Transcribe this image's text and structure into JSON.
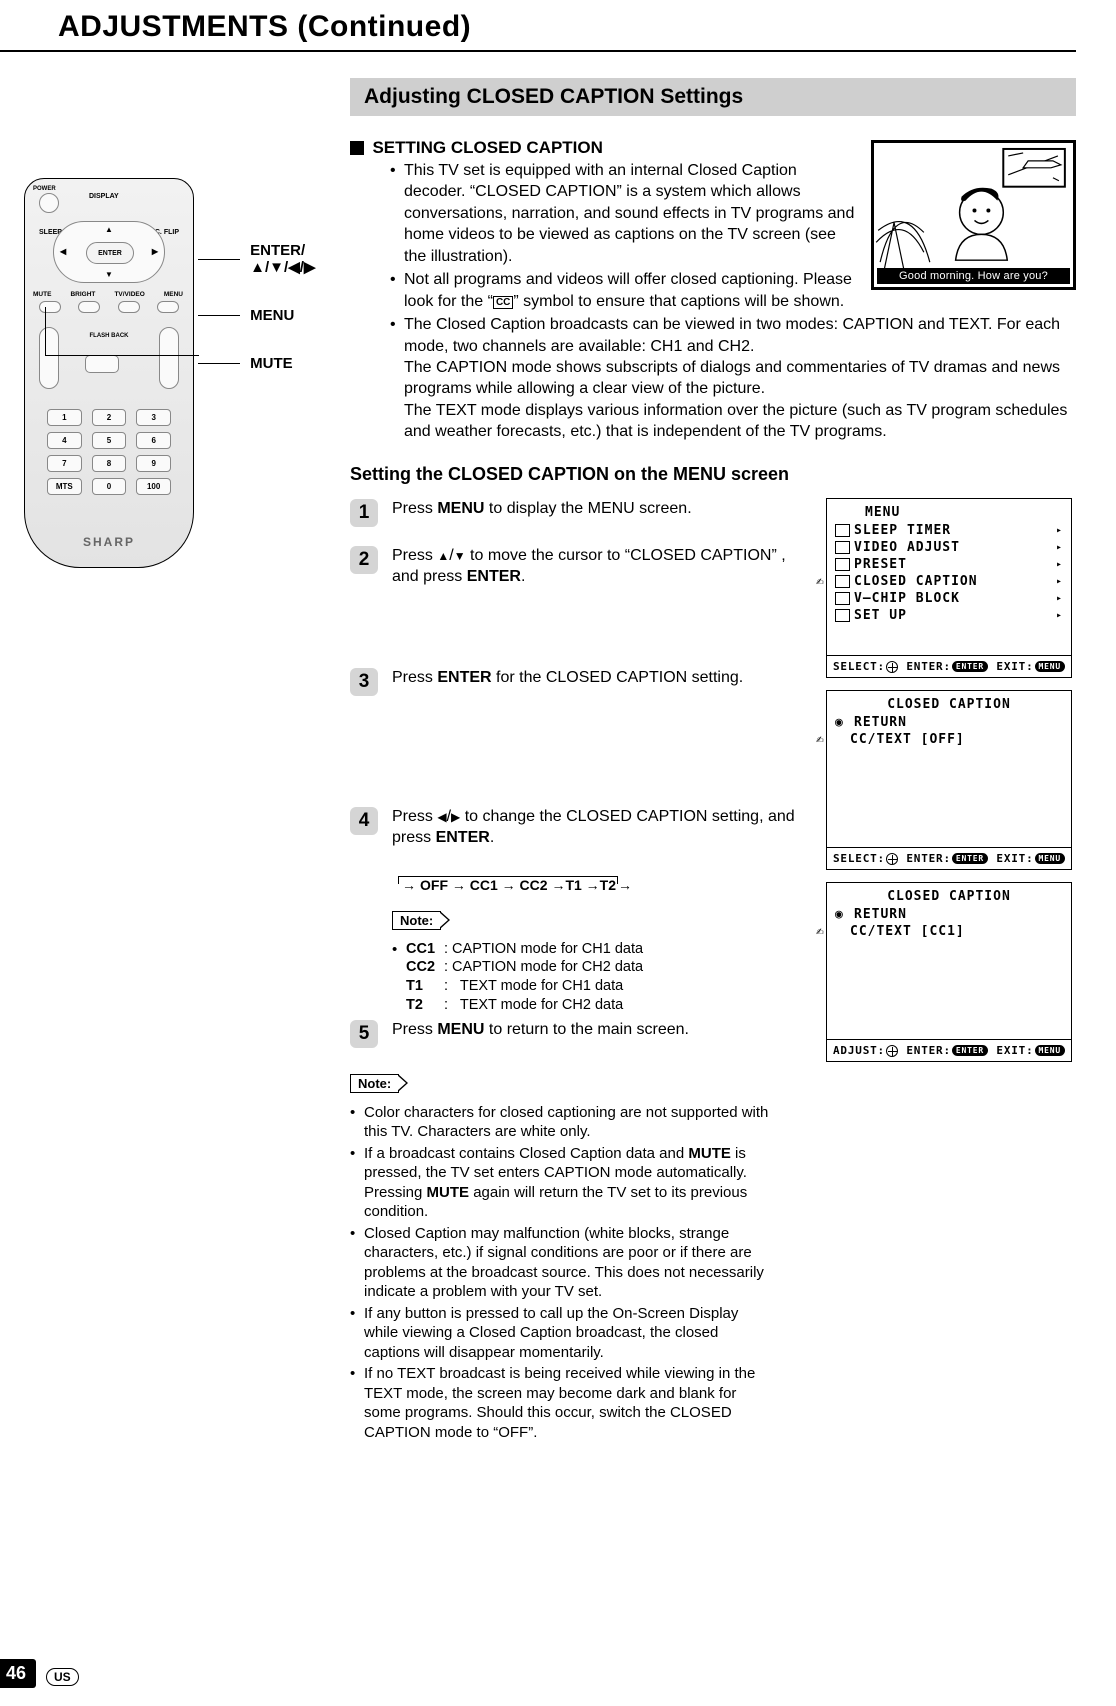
{
  "page_title": "ADJUSTMENTS (Continued)",
  "section_banner": "Adjusting CLOSED CAPTION Settings",
  "setting_head": "SETTING CLOSED CAPTION",
  "intro_bullets": [
    "This TV set is equipped with an internal Closed Caption decoder. “CLOSED CAPTION” is a system which allows conversations, narration, and sound effects in TV programs and home videos to be viewed as captions on the TV screen (see the illustration).",
    "Not all programs and videos will offer closed captioning. Please look for the “      ” symbol to ensure that captions will be shown.",
    "The Closed Caption broadcasts can be viewed in two modes: CAPTION and TEXT. For each mode, two channels are available: CH1 and CH2.\nThe CAPTION mode shows subscripts of dialogs and commentaries of TV dramas and news programs while allowing a clear view of the picture.\nThe TEXT mode displays various information over the picture (such as TV program schedules and weather forecasts, etc.) that is independent of the TV programs."
  ],
  "cc_symbol": "CC",
  "subhead": "Setting the CLOSED CAPTION on the MENU screen",
  "steps": [
    {
      "num": "1",
      "html": "Press <b>MENU</b> to display the MENU screen."
    },
    {
      "num": "2",
      "html": "Press <span class='tri'>▲</span>/<span class='tri'>▼</span> to move the cursor to “CLOSED CAPTION” , and press <b>ENTER</b>."
    },
    {
      "num": "3",
      "html": "Press <b>ENTER</b> for the CLOSED CAPTION setting."
    },
    {
      "num": "4",
      "html": "Press <span class='tri'>◀</span>/<span class='tri'>▶</span> to change the CLOSED CAPTION setting, and press <b>ENTER</b>."
    },
    {
      "num": "5",
      "html": "Press <b>MENU</b> to return to the main screen."
    }
  ],
  "cycle": "→ OFF → CC1 → CC2 → T1 → T2 ↲",
  "cycle_render": "OFF → CC1 → CC2 →T1 →T2",
  "note_label": "Note:",
  "mode_defs": [
    {
      "k": "CC1",
      "v": ": CAPTION mode for CH1 data"
    },
    {
      "k": "CC2",
      "v": ": CAPTION mode for CH2 data"
    },
    {
      "k": "T1",
      "v": ":   TEXT mode for CH1 data"
    },
    {
      "k": "T2",
      "v": ":   TEXT mode for CH2 data"
    }
  ],
  "bottom_notes": [
    "Color characters for closed captioning are not supported with this TV. Characters are white only.",
    "If a broadcast contains Closed Caption data and MUTE is pressed, the TV set enters CAPTION mode automatically. Pressing MUTE again will return the TV set to its previous condition.",
    "Closed Caption may malfunction (white blocks, strange characters, etc.) if signal conditions are poor or if there are problems at the broadcast source. This does not necessarily indicate a problem with your TV set.",
    "If any button is pressed to call up the On-Screen Display while viewing a Closed Caption broadcast, the closed captions will disappear momentarily.",
    "If no TEXT broadcast is being received while viewing in the TEXT mode, the screen may become dark and blank for some programs. Should this occur, switch the CLOSED CAPTION mode to “OFF”."
  ],
  "illustration_caption": "Good morning. How are you?",
  "remote": {
    "power": "POWER",
    "display": "DISPLAY",
    "sleep": "SLEEP",
    "picflip": "PIC. FLIP",
    "mute": "MUTE",
    "bright": "BRIGHT",
    "tvvideo": "TV/VIDEO",
    "menu": "MENU",
    "enter": "ENTER",
    "flashback": "FLASH BACK",
    "brand": "SHARP",
    "keys": [
      "1",
      "2",
      "3",
      "4",
      "5",
      "6",
      "7",
      "8",
      "9",
      "MTS",
      "0",
      "100"
    ]
  },
  "callouts": {
    "enter": "ENTER/\n▲/▼/◀/▶",
    "menu": "MENU",
    "mute": "MUTE"
  },
  "osd": {
    "menu_title": "MENU",
    "menu_items": [
      "SLEEP TIMER",
      "VIDEO ADJUST",
      "PRESET",
      "CLOSED CAPTION",
      "V–CHIP BLOCK",
      "SET UP"
    ],
    "foot_select": "SELECT:",
    "foot_adjust": "ADJUST:",
    "foot_enter": "ENTER:",
    "foot_exit": "EXIT:",
    "enter_pill": "ENTER",
    "menu_pill": "MENU",
    "cc_title": "CLOSED CAPTION",
    "return": "RETURN",
    "cc_off": "CC/TEXT [OFF]",
    "cc_cc1": "CC/TEXT [CC1]"
  },
  "page_number": "46",
  "region": "US"
}
